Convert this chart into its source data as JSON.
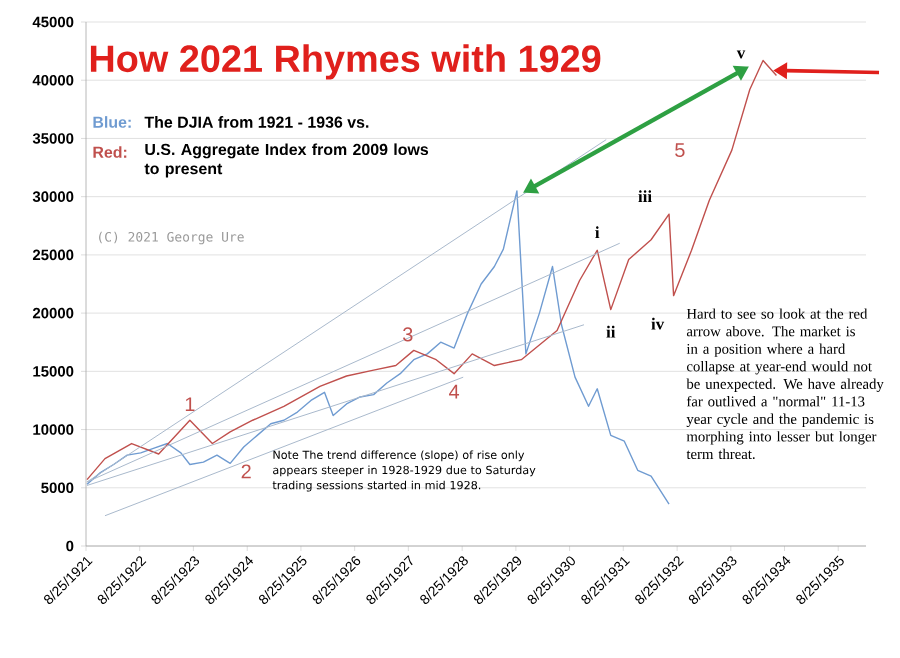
{
  "chart_data": {
    "type": "line",
    "title": "How 2021 Rhymes with 1929",
    "xlim": [
      "1921-08-25",
      "1936-03"
    ],
    "ylim": [
      0,
      45000
    ],
    "xticks": [
      {
        "value": "1921-08-25",
        "label": "8/25/1921"
      },
      {
        "value": "1922-08-25",
        "label": "8/25/1922"
      },
      {
        "value": "1923-08-25",
        "label": "8/25/1923"
      },
      {
        "value": "1924-08-25",
        "label": "8/25/1924"
      },
      {
        "value": "1925-08-25",
        "label": "8/25/1925"
      },
      {
        "value": "1926-08-25",
        "label": "8/25/1926"
      },
      {
        "value": "1927-08-25",
        "label": "8/25/1927"
      },
      {
        "value": "1928-08-25",
        "label": "8/25/1928"
      },
      {
        "value": "1929-08-25",
        "label": "8/25/1929"
      },
      {
        "value": "1930-08-25",
        "label": "8/25/1930"
      },
      {
        "value": "1931-08-25",
        "label": "8/25/1931"
      },
      {
        "value": "1932-08-25",
        "label": "8/25/1932"
      },
      {
        "value": "1933-08-25",
        "label": "8/25/1933"
      },
      {
        "value": "1934-08-25",
        "label": "8/25/1934"
      },
      {
        "value": "1935-08-25",
        "label": "8/25/1935"
      }
    ],
    "yticks": [
      0,
      5000,
      10000,
      15000,
      20000,
      25000,
      30000,
      35000,
      40000,
      45000
    ],
    "grid": "y",
    "marker": "none",
    "line_style": "solid",
    "series": [
      {
        "name": "Blue:",
        "color": "#6f9bd1",
        "x": [
          "1921-09",
          "1921-12",
          "1922-03",
          "1922-06",
          "1922-09",
          "1922-12",
          "1923-03",
          "1923-06",
          "1923-08",
          "1923-11",
          "1924-02",
          "1924-05",
          "1924-08",
          "1924-11",
          "1925-02",
          "1925-05",
          "1925-08",
          "1925-11",
          "1926-02",
          "1926-04",
          "1926-07",
          "1926-10",
          "1927-01",
          "1927-04",
          "1927-07",
          "1927-10",
          "1928-01",
          "1928-04",
          "1928-07",
          "1928-10",
          "1929-01",
          "1929-04",
          "1929-06",
          "1929-09",
          "1929-11",
          "1930-02",
          "1930-05",
          "1930-07",
          "1930-10",
          "1931-01",
          "1931-03",
          "1931-06",
          "1931-09",
          "1931-12",
          "1932-03",
          "1932-07"
        ],
        "values": [
          5300,
          6300,
          7000,
          7800,
          8000,
          8400,
          8800,
          8000,
          7000,
          7200,
          7800,
          7100,
          8500,
          9500,
          10500,
          10800,
          11500,
          12500,
          13200,
          11200,
          12200,
          12800,
          13000,
          14000,
          14800,
          16000,
          16500,
          17500,
          17000,
          20000,
          22500,
          24000,
          25500,
          30500,
          16500,
          20000,
          24000,
          19000,
          14500,
          12000,
          13500,
          9500,
          9000,
          6500,
          6000,
          3600
        ]
      },
      {
        "name": "Red:",
        "color": "#c0504d",
        "x": [
          "1921-09",
          "1922-01",
          "1922-07",
          "1923-01",
          "1923-08",
          "1924-01",
          "1924-05",
          "1924-10",
          "1925-05",
          "1926-01",
          "1926-07",
          "1927-01",
          "1927-06",
          "1927-10",
          "1928-03",
          "1928-07",
          "1928-11",
          "1929-04",
          "1929-10",
          "1930-06",
          "1930-11",
          "1931-03",
          "1931-06",
          "1931-10",
          "1932-03",
          "1932-07",
          "1932-08",
          "1932-12",
          "1933-04",
          "1933-09",
          "1934-01",
          "1934-04",
          "1934-07"
        ],
        "values": [
          5700,
          7500,
          8800,
          7900,
          10800,
          8800,
          9800,
          10800,
          12000,
          13700,
          14600,
          15100,
          15500,
          16800,
          16000,
          14800,
          16500,
          15500,
          16000,
          18500,
          22800,
          25400,
          20300,
          24600,
          26300,
          28500,
          21500,
          25400,
          29700,
          34000,
          39200,
          41700,
          40400
        ]
      },
      {
        "type": "line",
        "color": "#a9b9cc",
        "x": [
          "1921-09",
          "1931-05"
        ],
        "values": [
          5500,
          34900
        ]
      },
      {
        "type": "line",
        "color": "#a9b9cc",
        "x": [
          "1921-09",
          "1931-08"
        ],
        "values": [
          5500,
          26000
        ]
      },
      {
        "type": "line",
        "color": "#a9b9cc",
        "x": [
          "1921-09",
          "1930-12"
        ],
        "values": [
          5200,
          19000
        ]
      },
      {
        "type": "line",
        "color": "#a9b9cc",
        "x": [
          "1922-01",
          "1928-09"
        ],
        "values": [
          2600,
          14500
        ]
      }
    ],
    "annotations": [
      "The DJIA from 1921 - 1936 vs.",
      "U.S. Aggregate Index from 2009 lows to present",
      "(C) 2021 George Ure",
      "Note The trend difference (slope) of rise only appears steeper in 1928-1929 due to Saturday trading sessions started in mid 1928.",
      "Hard to see so look at the red arrow above.  The market is in a position where a hard collapse at year-end would not be unexpected.  We have already far outlived a \"normal\" 11-13 year cycle and the pandemic is morphing into lesser but longer term threat.",
      {
        "text": "1",
        "x": "1923-08",
        "y": 10800
      },
      {
        "text": "2",
        "x": "1924-05",
        "y": 7100
      },
      {
        "text": "3",
        "x": "1927-10",
        "y": 16800
      },
      {
        "text": "4",
        "x": "1928-07",
        "y": 14800
      },
      {
        "text": "5",
        "x": "1933-09",
        "y": 34000
      },
      {
        "text": "i",
        "x": "1931-03",
        "y": 25400
      },
      {
        "text": "ii",
        "x": "1931-06",
        "y": 20300
      },
      {
        "text": "iii",
        "x": "1932-07",
        "y": 28500
      },
      {
        "text": "iv",
        "x": "1932-08",
        "y": 21500
      },
      {
        "text": "v",
        "x": "1934-04",
        "y": 41700
      }
    ]
  }
}
